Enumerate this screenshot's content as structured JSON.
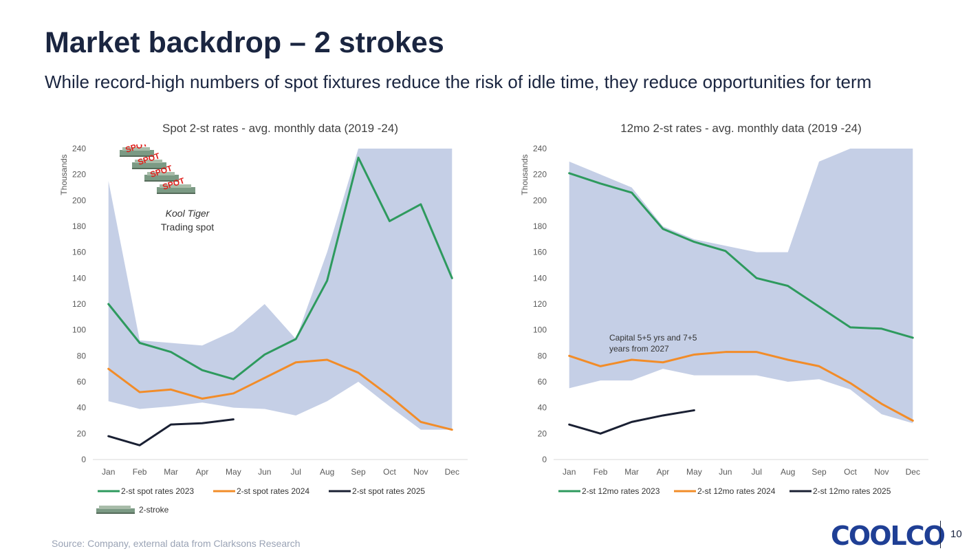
{
  "header": {
    "title": "Market backdrop – 2 strokes",
    "subtitle": "While record-high numbers of spot fixtures reduce the risk of idle time, they reduce opportunities for term"
  },
  "footer": {
    "source": "Source: Company, external data from Clarksons Research",
    "logo": "COOLCO",
    "page": "10"
  },
  "annotations": {
    "spot_vessel": "Kool Tiger",
    "spot_status": "Trading spot",
    "spot_badge": "SPOT",
    "capital_note_line1": "Capital 5+5 yrs and 7+5",
    "capital_note_line2": "years from 2027",
    "legend_2stroke": "2-stroke"
  },
  "colors": {
    "band": "#c5cfe6",
    "green": "#2e9a5e",
    "orange": "#f28c28",
    "navy": "#1a2033",
    "spot_red": "#e0201c",
    "logo_blue": "#1f3f95"
  },
  "chart_data": [
    {
      "type": "line",
      "title": "Spot 2-st rates - avg. monthly data (2019 -24)",
      "ylabel": "Thousands",
      "xlabel": "",
      "ylim": [
        0,
        240
      ],
      "yticks": [
        0,
        20,
        40,
        60,
        80,
        100,
        120,
        140,
        160,
        180,
        200,
        220,
        240
      ],
      "categories": [
        "Jan",
        "Feb",
        "Mar",
        "Apr",
        "May",
        "Jun",
        "Jul",
        "Aug",
        "Sep",
        "Oct",
        "Nov",
        "Dec"
      ],
      "band": {
        "lower": [
          45,
          39,
          41,
          44,
          40,
          39,
          34,
          45,
          60,
          41,
          23,
          23
        ],
        "upper": [
          215,
          92,
          90,
          88,
          99,
          120,
          93,
          160,
          240,
          240,
          240,
          240
        ]
      },
      "series": [
        {
          "name": "2-st spot rates 2023",
          "color": "#2e9a5e",
          "values": [
            120,
            90,
            83,
            69,
            62,
            81,
            93,
            138,
            233,
            184,
            197,
            140
          ]
        },
        {
          "name": "2-st spot rates 2024",
          "color": "#f28c28",
          "values": [
            70,
            52,
            54,
            47,
            51,
            63,
            75,
            77,
            67,
            49,
            29,
            23
          ]
        },
        {
          "name": "2-st spot rates 2025",
          "color": "#1a2033",
          "values": [
            18,
            11,
            27,
            28,
            31,
            null,
            null,
            null,
            null,
            null,
            null,
            null
          ]
        }
      ],
      "legend": "bottom"
    },
    {
      "type": "line",
      "title": "12mo 2-st rates - avg. monthly data (2019 -24)",
      "ylabel": "Thousands",
      "xlabel": "",
      "ylim": [
        0,
        240
      ],
      "yticks": [
        0,
        20,
        40,
        60,
        80,
        100,
        120,
        140,
        160,
        180,
        200,
        220,
        240
      ],
      "categories": [
        "Jan",
        "Feb",
        "Mar",
        "Apr",
        "May",
        "Jun",
        "Jul",
        "Aug",
        "Sep",
        "Oct",
        "Nov",
        "Dec"
      ],
      "band": {
        "lower": [
          55,
          61,
          61,
          70,
          65,
          65,
          65,
          60,
          62,
          54,
          35,
          28
        ],
        "upper": [
          230,
          220,
          210,
          180,
          170,
          165,
          160,
          160,
          230,
          240,
          240,
          240
        ]
      },
      "series": [
        {
          "name": "2-st 12mo rates 2023",
          "color": "#2e9a5e",
          "values": [
            221,
            213,
            206,
            178,
            168,
            161,
            140,
            134,
            118,
            102,
            101,
            94
          ]
        },
        {
          "name": "2-st 12mo rates 2024",
          "color": "#f28c28",
          "values": [
            80,
            72,
            77,
            75,
            81,
            83,
            83,
            77,
            72,
            59,
            43,
            30
          ]
        },
        {
          "name": "2-st 12mo rates 2025",
          "color": "#1a2033",
          "values": [
            27,
            20,
            29,
            34,
            38,
            null,
            null,
            null,
            null,
            null,
            null,
            null
          ]
        }
      ],
      "legend": "bottom"
    }
  ]
}
